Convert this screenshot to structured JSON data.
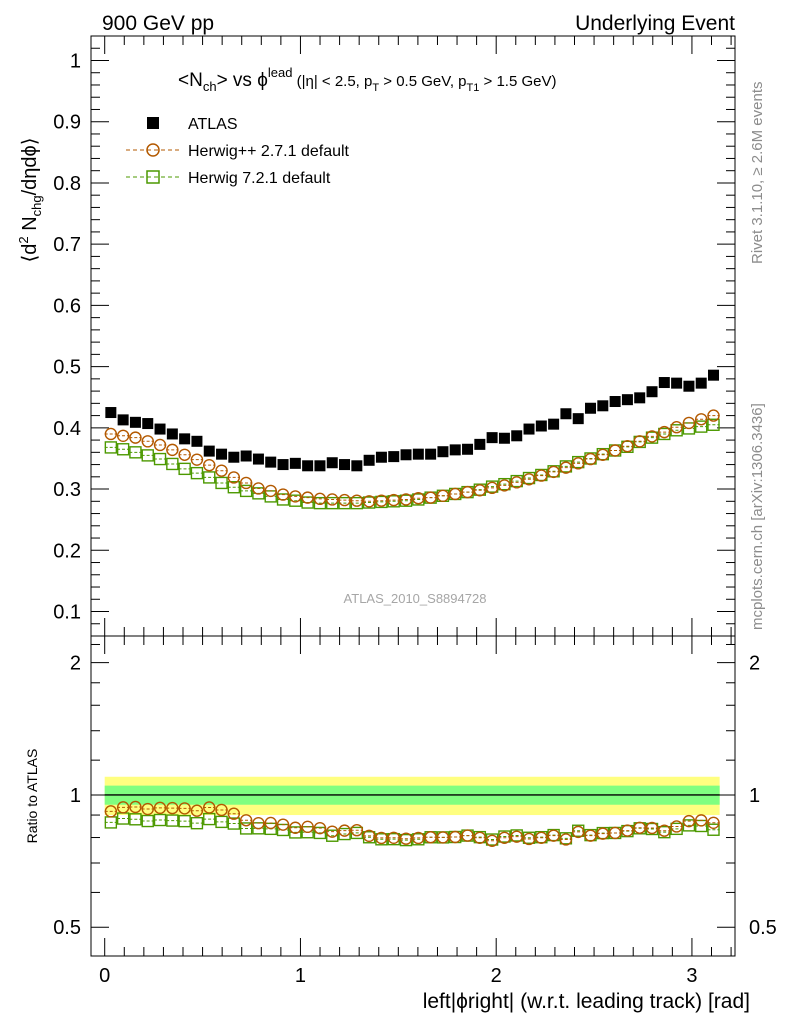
{
  "header": {
    "left": "900 GeV pp",
    "right": "Underlying Event"
  },
  "side_labels": {
    "rivet": "Rivet 3.1.10, ≥ 2.6M events",
    "mcplots": "mcplots.cern.ch [arXiv:1306.3436]"
  },
  "watermark": "ATLAS_2010_S8894728",
  "title": {
    "part1": "<N",
    "sub1": "ch",
    "part2": "> vs ϕ",
    "sup1": "lead",
    "part3": " (|η| < 2.5, p",
    "sub2": "T",
    "part4": " > 0.5 GeV, p",
    "sub3": "T1",
    "part5": " > 1.5 GeV)"
  },
  "ylabel_main": {
    "part1": "⟨d",
    "sup1": "2",
    "part2": " N",
    "sub1": "chg",
    "part3": "/dηdϕ⟩"
  },
  "ylabel_ratio": "Ratio to ATLAS",
  "xlabel": "left|ϕright| (w.r.t. leading track) [rad]",
  "legend": [
    {
      "label": "ATLAS",
      "marker": "square-filled"
    },
    {
      "label": "Herwig++ 2.7.1 default",
      "marker": "circle-open"
    },
    {
      "label": "Herwig 7.2.1 default",
      "marker": "square-open"
    }
  ],
  "colors": {
    "data": "#000000",
    "herwigpp": "#b35900",
    "herwig7": "#4c9900",
    "band_outer": "#ffff80",
    "band_inner": "#80ff80"
  },
  "chart_data": {
    "type": "scatter",
    "x_ticks": [
      "0",
      "1",
      "2",
      "3"
    ],
    "x_range": [
      -0.07,
      3.22
    ],
    "main_y_range": [
      0.06,
      1.04
    ],
    "main_y_ticks": [
      "0.1",
      "0.2",
      "0.3",
      "0.4",
      "0.5",
      "0.6",
      "0.7",
      "0.8",
      "0.9",
      "1"
    ],
    "ratio_y_range": [
      0.43,
      2.3
    ],
    "ratio_y_scale": "log",
    "ratio_y_ticks": [
      "0.5",
      "1",
      "2"
    ],
    "ratio_band": {
      "outer": [
        0.9,
        1.1
      ],
      "inner": [
        0.95,
        1.05
      ]
    },
    "x": [
      0.0314,
      0.0942,
      0.157,
      0.2199,
      0.2827,
      0.3456,
      0.4084,
      0.4712,
      0.5341,
      0.5969,
      0.6597,
      0.7226,
      0.7854,
      0.8482,
      0.9111,
      0.9739,
      1.0367,
      1.0996,
      1.1624,
      1.2252,
      1.2881,
      1.3509,
      1.4137,
      1.4766,
      1.5394,
      1.6022,
      1.6651,
      1.7279,
      1.7907,
      1.8536,
      1.9164,
      1.9792,
      2.0421,
      2.1049,
      2.1677,
      2.2306,
      2.2934,
      2.3562,
      2.4191,
      2.4819,
      2.5447,
      2.6076,
      2.6704,
      2.7332,
      2.7961,
      2.8589,
      2.9217,
      2.9846,
      3.0474,
      3.1102
    ],
    "series": [
      {
        "name": "ATLAS",
        "values": [
          0.425,
          0.413,
          0.409,
          0.407,
          0.398,
          0.39,
          0.382,
          0.378,
          0.362,
          0.357,
          0.352,
          0.354,
          0.349,
          0.344,
          0.34,
          0.342,
          0.338,
          0.338,
          0.343,
          0.34,
          0.338,
          0.347,
          0.352,
          0.353,
          0.356,
          0.357,
          0.357,
          0.361,
          0.364,
          0.365,
          0.373,
          0.384,
          0.383,
          0.387,
          0.398,
          0.403,
          0.406,
          0.423,
          0.415,
          0.432,
          0.436,
          0.443,
          0.446,
          0.449,
          0.459,
          0.474,
          0.473,
          0.468,
          0.473,
          0.486
        ]
      },
      {
        "name": "Herwig++ 2.7.1 default",
        "values": [
          0.39,
          0.387,
          0.384,
          0.378,
          0.372,
          0.364,
          0.356,
          0.348,
          0.339,
          0.33,
          0.319,
          0.31,
          0.301,
          0.297,
          0.291,
          0.288,
          0.286,
          0.284,
          0.283,
          0.282,
          0.281,
          0.28,
          0.281,
          0.282,
          0.283,
          0.285,
          0.286,
          0.289,
          0.292,
          0.295,
          0.298,
          0.302,
          0.306,
          0.311,
          0.316,
          0.322,
          0.328,
          0.335,
          0.342,
          0.349,
          0.356,
          0.363,
          0.37,
          0.378,
          0.386,
          0.393,
          0.401,
          0.408,
          0.414,
          0.42
        ]
      },
      {
        "name": "Herwig 7.2.1 default",
        "values": [
          0.368,
          0.365,
          0.36,
          0.355,
          0.349,
          0.341,
          0.333,
          0.326,
          0.319,
          0.31,
          0.303,
          0.297,
          0.293,
          0.288,
          0.283,
          0.281,
          0.278,
          0.277,
          0.277,
          0.277,
          0.277,
          0.278,
          0.279,
          0.28,
          0.281,
          0.283,
          0.286,
          0.289,
          0.292,
          0.295,
          0.299,
          0.304,
          0.308,
          0.313,
          0.318,
          0.323,
          0.329,
          0.337,
          0.344,
          0.35,
          0.357,
          0.363,
          0.369,
          0.377,
          0.384,
          0.39,
          0.396,
          0.399,
          0.402,
          0.405
        ]
      }
    ]
  }
}
